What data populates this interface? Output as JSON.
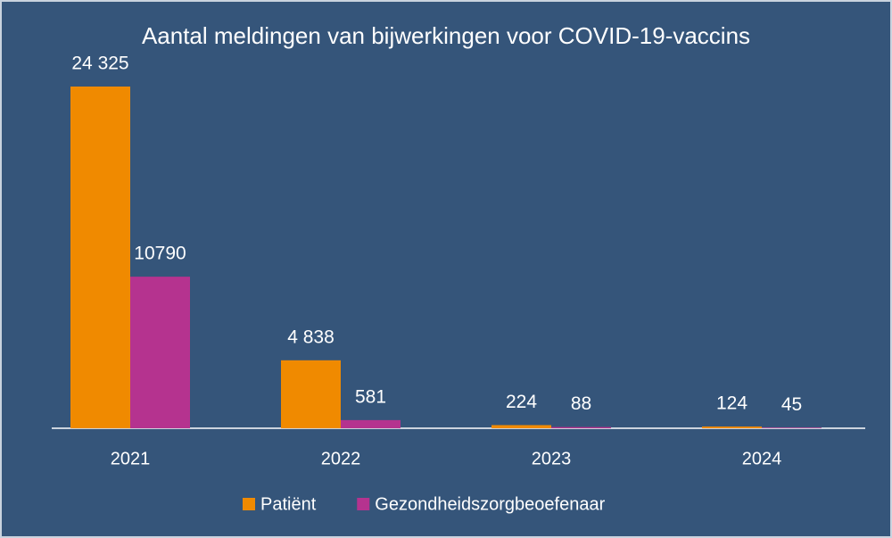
{
  "chart_data": {
    "type": "bar",
    "title": "Aantal meldingen van bijwerkingen voor COVID-19-vaccins",
    "categories": [
      "2021",
      "2022",
      "2023",
      "2024"
    ],
    "series": [
      {
        "name": "Patiënt",
        "color": "#f08a00",
        "values": [
          24325,
          4838,
          224,
          124
        ],
        "value_labels": [
          "24 325",
          "4 838",
          "224",
          "124"
        ]
      },
      {
        "name": "Gezondheidszorgbeoefenaar",
        "color": "#b5338f",
        "values": [
          10790,
          581,
          88,
          45
        ]
      }
    ]
  }
}
